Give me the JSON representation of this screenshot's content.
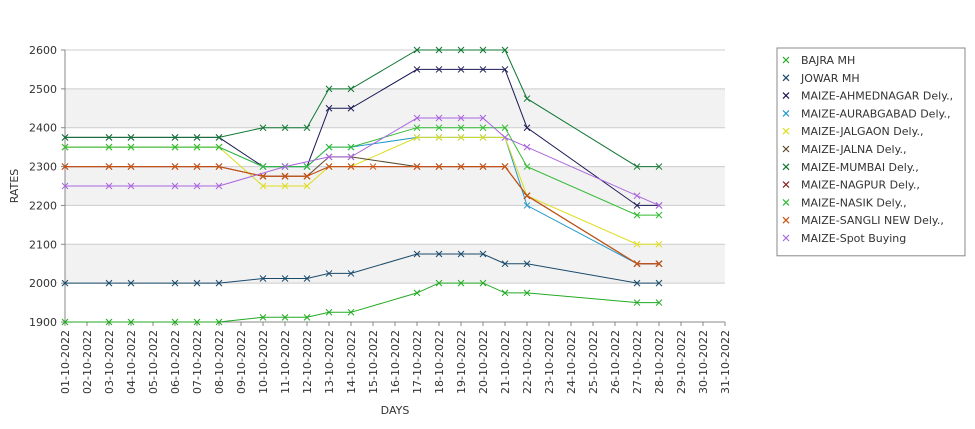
{
  "chart_data": {
    "type": "line",
    "xlabel": "DAYS",
    "ylabel": "RATES",
    "ylim": [
      1900,
      2600
    ],
    "yticks": [
      1900,
      2000,
      2100,
      2200,
      2300,
      2400,
      2500,
      2600
    ],
    "categories": [
      "01-10-2022",
      "02-10-2022",
      "03-10-2022",
      "04-10-2022",
      "05-10-2022",
      "06-10-2022",
      "07-10-2022",
      "08-10-2022",
      "09-10-2022",
      "10-10-2022",
      "11-10-2022",
      "12-10-2022",
      "13-10-2022",
      "14-10-2022",
      "15-10-2022",
      "16-10-2022",
      "17-10-2022",
      "18-10-2022",
      "19-10-2022",
      "20-10-2022",
      "21-10-2022",
      "22-10-2022",
      "23-10-2022",
      "24-10-2022",
      "25-10-2022",
      "26-10-2022",
      "27-10-2022",
      "28-10-2022",
      "29-10-2022",
      "30-10-2022",
      "31-10-2022"
    ],
    "grid": "alternating horizontal bands",
    "legend_position": "right",
    "series": [
      {
        "name": "BAJRA MH",
        "color": "#22aa22",
        "values": [
          1900,
          null,
          1900,
          1900,
          null,
          1900,
          1900,
          1900,
          null,
          1912,
          1912,
          1912,
          1925,
          1925,
          null,
          null,
          1975,
          2000,
          2000,
          2000,
          1975,
          1975,
          null,
          null,
          null,
          null,
          1950,
          1950,
          null,
          null,
          null
        ]
      },
      {
        "name": "JOWAR MH",
        "color": "#1a4a6a",
        "values": [
          2000,
          null,
          2000,
          2000,
          null,
          2000,
          2000,
          2000,
          null,
          2012,
          2012,
          2012,
          2025,
          2025,
          null,
          null,
          2075,
          2075,
          2075,
          2075,
          2050,
          2050,
          null,
          null,
          null,
          null,
          2000,
          2000,
          null,
          null,
          null
        ]
      },
      {
        "name": "MAIZE-AHMEDNAGAR Dely.,",
        "color": "#1a1a55",
        "values": [
          2375,
          null,
          2375,
          2375,
          null,
          2375,
          2375,
          2375,
          null,
          2300,
          2300,
          2300,
          2450,
          2450,
          null,
          null,
          2550,
          2550,
          2550,
          2550,
          2550,
          2400,
          null,
          null,
          null,
          null,
          2200,
          2200,
          null,
          null,
          null
        ]
      },
      {
        "name": "MAIZE-AURABGABAD Dely.,",
        "color": "#2299cc",
        "values": [
          2350,
          null,
          2350,
          2350,
          null,
          2350,
          2350,
          2350,
          null,
          2300,
          2300,
          2300,
          2350,
          2350,
          null,
          null,
          2375,
          2375,
          2375,
          2375,
          2375,
          2200,
          null,
          null,
          null,
          null,
          2050,
          2050,
          null,
          null,
          null
        ]
      },
      {
        "name": "MAIZE-JALGAON Dely.,",
        "color": "#dddd22",
        "values": [
          2350,
          null,
          2350,
          2350,
          null,
          2350,
          2350,
          2350,
          null,
          2250,
          2250,
          2250,
          2300,
          2300,
          null,
          null,
          2375,
          2375,
          2375,
          2375,
          2375,
          2225,
          null,
          null,
          null,
          null,
          2100,
          2100,
          null,
          null,
          null
        ]
      },
      {
        "name": "MAIZE-JALNA Dely.,",
        "color": "#5a4a2a",
        "values": [
          2300,
          null,
          2300,
          2300,
          null,
          2300,
          2300,
          2300,
          null,
          2275,
          2275,
          2275,
          2325,
          2325,
          null,
          null,
          2300,
          2300,
          2300,
          2300,
          2300,
          2225,
          null,
          null,
          null,
          null,
          2050,
          2050,
          null,
          null,
          null
        ]
      },
      {
        "name": "MAIZE-MUMBAI Dely.,",
        "color": "#117733",
        "values": [
          2375,
          null,
          2375,
          2375,
          null,
          2375,
          2375,
          2375,
          null,
          2400,
          2400,
          2400,
          2500,
          2500,
          null,
          null,
          2600,
          2600,
          2600,
          2600,
          2600,
          2475,
          null,
          null,
          null,
          null,
          2300,
          2300,
          null,
          null,
          null
        ]
      },
      {
        "name": "MAIZE-NAGPUR Dely.,",
        "color": "#882222",
        "values": [
          2300,
          null,
          2300,
          2300,
          null,
          2300,
          2300,
          2300,
          null,
          2275,
          2275,
          2275,
          2300,
          2300,
          null,
          null,
          2300,
          2300,
          2300,
          2300,
          2300,
          2225,
          null,
          null,
          null,
          null,
          2050,
          2050,
          null,
          null,
          null
        ]
      },
      {
        "name": "MAIZE-NASIK Dely.,",
        "color": "#33bb33",
        "values": [
          2350,
          null,
          2350,
          2350,
          null,
          2350,
          2350,
          2350,
          null,
          2300,
          2300,
          2300,
          2350,
          2350,
          null,
          null,
          2400,
          2400,
          2400,
          2400,
          2400,
          2300,
          null,
          null,
          null,
          null,
          2175,
          2175,
          null,
          null,
          null
        ]
      },
      {
        "name": "MAIZE-SANGLI NEW Dely.,",
        "color": "#cc5511",
        "values": [
          2300,
          null,
          2300,
          2300,
          null,
          2300,
          2300,
          2300,
          null,
          2275,
          2275,
          2275,
          2300,
          2300,
          2300,
          null,
          2300,
          2300,
          2300,
          2300,
          2300,
          2225,
          null,
          null,
          null,
          null,
          2050,
          2050,
          null,
          null,
          null
        ]
      },
      {
        "name": "MAIZE-Spot Buying",
        "color": "#aa66dd",
        "values": [
          2250,
          null,
          2250,
          2250,
          null,
          2250,
          2250,
          2250,
          null,
          null,
          2300,
          null,
          2325,
          2325,
          null,
          null,
          2425,
          2425,
          2425,
          2425,
          2375,
          2350,
          null,
          null,
          null,
          null,
          2225,
          2200,
          null,
          null,
          null
        ]
      }
    ]
  }
}
